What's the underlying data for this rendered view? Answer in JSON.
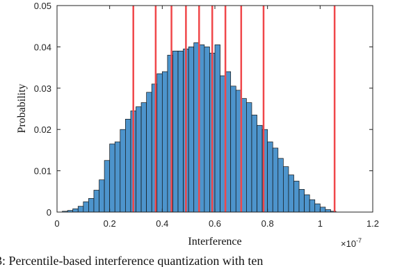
{
  "chart_data": {
    "type": "histogram",
    "caption": "3: Percentile-based interference quantization with ten",
    "xlabel": "Interference",
    "ylabel": "Probability",
    "x_multiplier": {
      "base": "×10",
      "exponent": "-7"
    },
    "bins": [
      0.02,
      0.04,
      0.06,
      0.08,
      0.1,
      0.12,
      0.14,
      0.16,
      0.18,
      0.2,
      0.22,
      0.24,
      0.26,
      0.28,
      0.3,
      0.32,
      0.34,
      0.36,
      0.38,
      0.4,
      0.42,
      0.44,
      0.46,
      0.48,
      0.5,
      0.52,
      0.54,
      0.56,
      0.58,
      0.6,
      0.62,
      0.64,
      0.66,
      0.68,
      0.7,
      0.72,
      0.74,
      0.76,
      0.78,
      0.8,
      0.82,
      0.84,
      0.86,
      0.88,
      0.9,
      0.92,
      0.94,
      0.96,
      0.98,
      1.0,
      1.02,
      1.04,
      1.06
    ],
    "values": [
      0.0002,
      0.0004,
      0.0008,
      0.0014,
      0.0025,
      0.0033,
      0.0053,
      0.0078,
      0.0125,
      0.0165,
      0.017,
      0.02,
      0.0225,
      0.0245,
      0.0255,
      0.0265,
      0.029,
      0.031,
      0.0335,
      0.034,
      0.038,
      0.039,
      0.039,
      0.0395,
      0.04,
      0.041,
      0.0405,
      0.04,
      0.0385,
      0.0405,
      0.033,
      0.034,
      0.0305,
      0.0295,
      0.0275,
      0.0265,
      0.0235,
      0.021,
      0.02,
      0.017,
      0.0155,
      0.013,
      0.011,
      0.009,
      0.0075,
      0.0055,
      0.0042,
      0.003,
      0.002,
      0.0012,
      0.0006,
      0.0002
    ],
    "color": "#4d94cc",
    "thresholds": [
      0.29,
      0.375,
      0.435,
      0.49,
      0.54,
      0.59,
      0.64,
      0.7,
      0.785,
      1.055
    ],
    "threshold_color": "#f0474a",
    "xlim": [
      0,
      1.2
    ],
    "xticks": [
      0,
      0.2,
      0.4,
      0.6,
      0.8,
      1,
      1.2
    ],
    "ylim": [
      0,
      0.05
    ],
    "yticks": [
      0,
      0.01,
      0.02,
      0.03,
      0.04,
      0.05
    ]
  }
}
